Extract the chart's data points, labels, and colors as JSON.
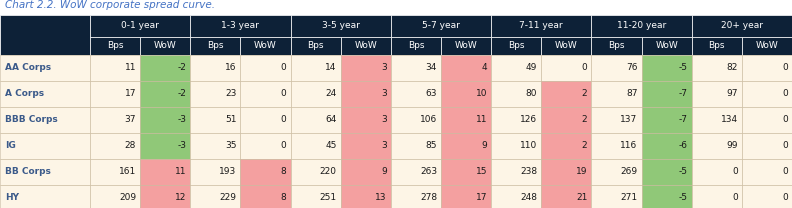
{
  "title": "Chart 2.2. WoW corporate spread curve.",
  "title_color": "#4472c4",
  "header_bg": "#0d2137",
  "header_text_color": "#ffffff",
  "row_bg": "#fdf5e6",
  "label_text_color": "#3b5a8a",
  "col_groups": [
    "0-1 year",
    "1-3 year",
    "3-5 year",
    "5-7 year",
    "7-11 year",
    "11-20 year",
    "20+ year"
  ],
  "sub_headers": [
    "Bps",
    "WoW"
  ],
  "row_labels": [
    "AA Corps",
    "A Corps",
    "BBB Corps",
    "IG",
    "BB Corps",
    "HY"
  ],
  "data": [
    [
      11,
      -2,
      16,
      0,
      14,
      3,
      34,
      4,
      49,
      0,
      76,
      -5,
      82,
      0
    ],
    [
      17,
      -2,
      23,
      0,
      24,
      3,
      63,
      10,
      80,
      2,
      87,
      -7,
      97,
      0
    ],
    [
      37,
      -3,
      51,
      0,
      64,
      3,
      106,
      11,
      126,
      2,
      137,
      -7,
      134,
      0
    ],
    [
      28,
      -3,
      35,
      0,
      45,
      3,
      85,
      9,
      110,
      2,
      116,
      -6,
      99,
      0
    ],
    [
      161,
      11,
      193,
      8,
      220,
      9,
      263,
      15,
      238,
      19,
      269,
      -5,
      0,
      0
    ],
    [
      209,
      12,
      229,
      8,
      251,
      13,
      278,
      17,
      248,
      21,
      271,
      -5,
      0,
      0
    ]
  ],
  "pos_color": "#f4a0a0",
  "neg_color": "#90c878",
  "figwidth": 7.92,
  "figheight": 2.08,
  "dpi": 100
}
